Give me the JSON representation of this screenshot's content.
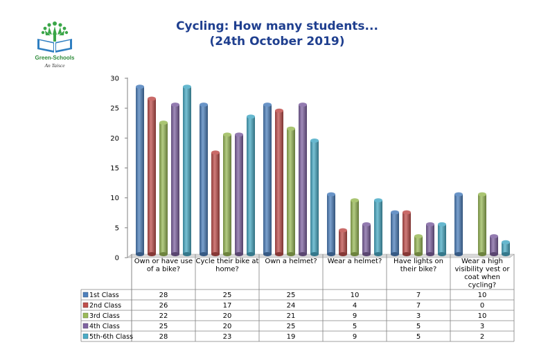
{
  "logo": {
    "name": "Green-Schools",
    "subtitle": "An Taisce"
  },
  "chart_data": {
    "type": "bar",
    "title": "Cycling: How many students...",
    "subtitle": "(24th October 2019)",
    "categories": [
      [
        "Own or have use",
        "of a bike?"
      ],
      [
        "Cycle their bike at",
        "home?"
      ],
      [
        "Own a helmet?"
      ],
      [
        "Wear a helmet?"
      ],
      [
        "Have lights on",
        "their bike?"
      ],
      [
        "Wear a high",
        "visibility vest or",
        "coat when",
        "cycling?"
      ]
    ],
    "series": [
      {
        "name": "1st Class",
        "values": [
          28,
          25,
          25,
          10,
          7,
          10
        ]
      },
      {
        "name": "2nd Class",
        "values": [
          26,
          17,
          24,
          4,
          7,
          0
        ]
      },
      {
        "name": "3rd Class",
        "values": [
          22,
          20,
          21,
          9,
          3,
          10
        ]
      },
      {
        "name": "4th Class",
        "values": [
          25,
          20,
          25,
          5,
          5,
          3
        ]
      },
      {
        "name": "5th-6th Class",
        "values": [
          28,
          23,
          19,
          9,
          5,
          2
        ]
      }
    ],
    "colors": [
      "#4f81bd",
      "#c0504d",
      "#9bbb59",
      "#8064a2",
      "#4bacc6"
    ],
    "ylim": [
      0,
      30
    ],
    "yticks": [
      0,
      5,
      10,
      15,
      20,
      25,
      30
    ],
    "grid": false,
    "legend": "data-table"
  }
}
